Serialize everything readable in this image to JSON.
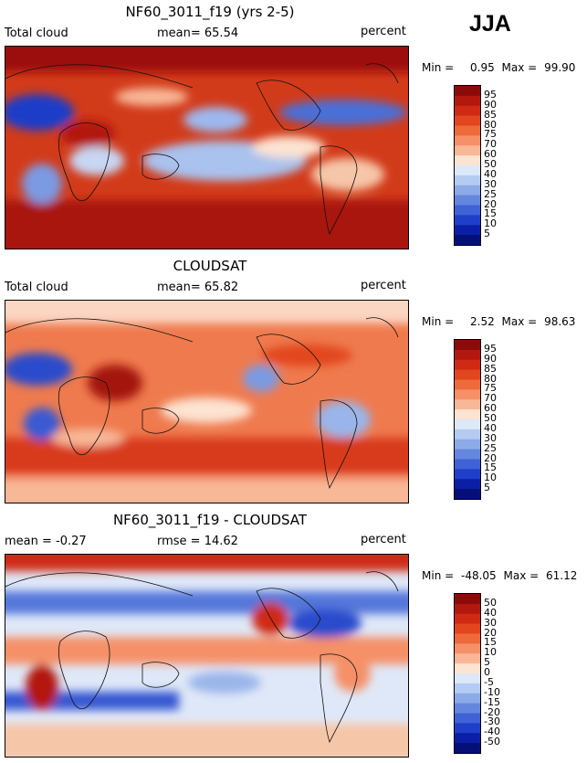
{
  "season": "JJA",
  "panels": [
    {
      "title": "NF60_3011_f19 (yrs 2-5)",
      "left_label": "Total cloud",
      "center_label": "mean=  65.54",
      "right_label": "percent",
      "min_label": "Min =",
      "min_value": "0.95",
      "max_label": "Max =",
      "max_value": "99.90"
    },
    {
      "title": "CLOUDSAT",
      "left_label": "Total cloud",
      "center_label": "mean=  65.82",
      "right_label": "percent",
      "min_label": "Min =",
      "min_value": "2.52",
      "max_label": "Max =",
      "max_value": "98.63"
    },
    {
      "title": "NF60_3011_f19 - CLOUDSAT",
      "left_label": "mean =  -0.27",
      "center_label": "rmse =  14.62",
      "right_label": "percent",
      "min_label": "Min =",
      "min_value": "-48.05",
      "max_label": "Max =",
      "max_value": "61.12"
    }
  ],
  "colorbars": {
    "abs": {
      "levels": [
        "95",
        "90",
        "85",
        "80",
        "75",
        "70",
        "60",
        "50",
        "40",
        "30",
        "25",
        "20",
        "15",
        "10",
        "5"
      ],
      "colors": [
        "#8b0a0a",
        "#b3180f",
        "#cf2a14",
        "#e2461f",
        "#ee6a3b",
        "#f59068",
        "#f8b797",
        "#fde3d1",
        "#dde8f8",
        "#b4cbf2",
        "#8caae8",
        "#6486de",
        "#3f62d6",
        "#1f3fc8",
        "#0b1fa6",
        "#041078"
      ]
    },
    "diff": {
      "levels": [
        "50",
        "40",
        "30",
        "20",
        "15",
        "10",
        "5",
        "0",
        "-5",
        "-10",
        "-15",
        "-20",
        "-30",
        "-40",
        "-50"
      ],
      "colors": [
        "#8b0a0a",
        "#b3180f",
        "#cf2a14",
        "#e2461f",
        "#ee6a3b",
        "#f59068",
        "#f8b797",
        "#fde3d1",
        "#dde8f8",
        "#b4cbf2",
        "#8caae8",
        "#6486de",
        "#3f62d6",
        "#1f3fc8",
        "#0b1fa6",
        "#041078"
      ]
    }
  },
  "chart_data": [
    {
      "type": "heatmap",
      "title": "NF60_3011_f19 (yrs 2-5)",
      "variable": "Total cloud",
      "units": "percent",
      "mean": 65.54,
      "min": 0.95,
      "max": 99.9,
      "contour_levels": [
        5,
        10,
        15,
        20,
        25,
        30,
        40,
        50,
        60,
        70,
        75,
        80,
        85,
        90,
        95
      ]
    },
    {
      "type": "heatmap",
      "title": "CLOUDSAT",
      "variable": "Total cloud",
      "units": "percent",
      "mean": 65.82,
      "min": 2.52,
      "max": 98.63,
      "contour_levels": [
        5,
        10,
        15,
        20,
        25,
        30,
        40,
        50,
        60,
        70,
        75,
        80,
        85,
        90,
        95
      ]
    },
    {
      "type": "heatmap",
      "title": "NF60_3011_f19 - CLOUDSAT",
      "units": "percent",
      "mean": -0.27,
      "rmse": 14.62,
      "min": -48.05,
      "max": 61.12,
      "contour_levels": [
        -50,
        -40,
        -30,
        -20,
        -15,
        -10,
        -5,
        0,
        5,
        10,
        15,
        20,
        30,
        40,
        50
      ]
    }
  ]
}
